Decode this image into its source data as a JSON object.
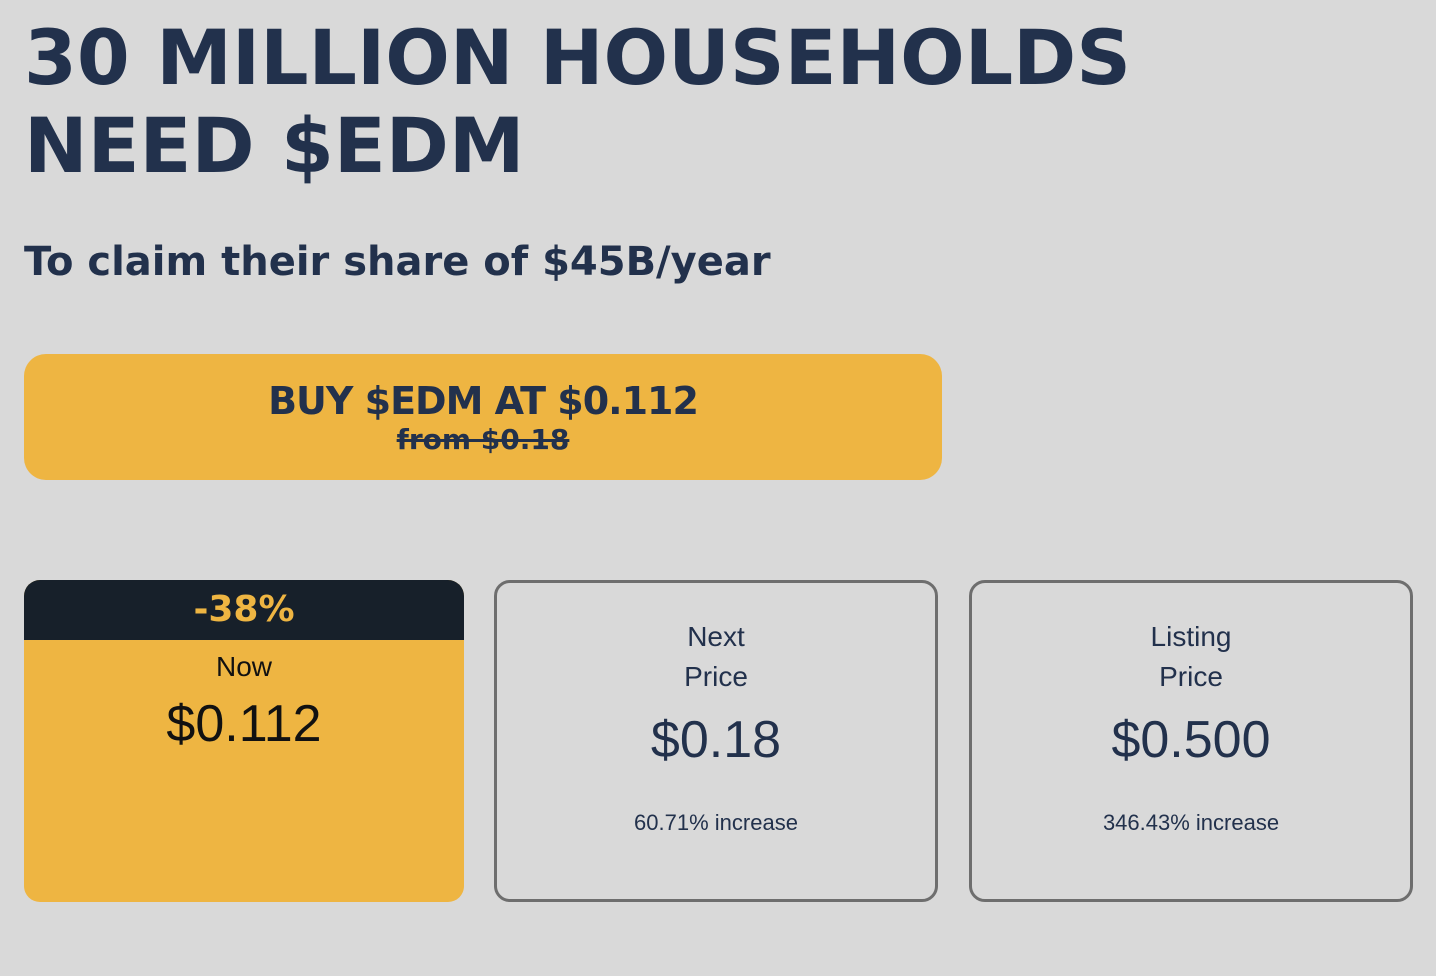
{
  "hero": {
    "headline_line1": "30 MILLION HOUSEHOLDS",
    "headline_line2": "NEED $EDM",
    "subheadline": "To claim their share of $45B/year"
  },
  "buy_button": {
    "label": "BUY $EDM AT $0.112",
    "old_price": "from $0.18"
  },
  "colors": {
    "accent": "#eeb542",
    "text": "#22314c",
    "dark_banner": "#17202a",
    "background": "#d9d9d9"
  },
  "price_cards": {
    "now": {
      "discount": "-38%",
      "label": "Now",
      "price": "$0.112"
    },
    "next": {
      "label_line1": "Next",
      "label_line2": "Price",
      "price": "$0.18",
      "increase": "60.71% increase"
    },
    "listing": {
      "label_line1": "Listing",
      "label_line2": "Price",
      "price": "$0.500",
      "increase": "346.43% increase"
    }
  }
}
